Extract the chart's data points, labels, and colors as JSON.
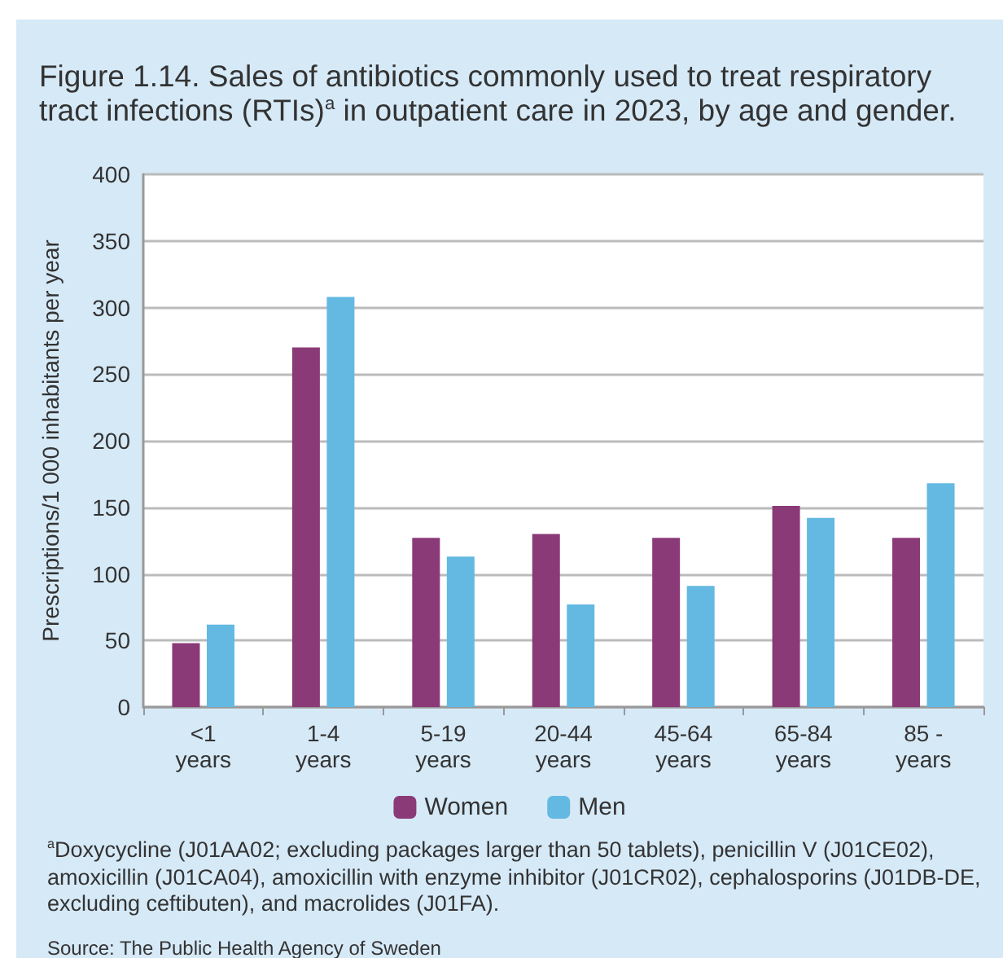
{
  "chart_data": {
    "type": "bar",
    "title": "Figure 1.14. Sales of antibiotics commonly used to treat respiratory tract infections (RTIs)$^{a}$ in outpatient care in 2023, by age and gender.",
    "ylabel": "Prescriptions/1 000 inhabitants per year",
    "categories": [
      "<1\nyears",
      "1-4\nyears",
      "5-19\nyears",
      "20-44\nyears",
      "45-64\nyears",
      "65-84\nyears",
      "85 -\nyears"
    ],
    "series": [
      {
        "name": "Women",
        "color": "#8b3a78",
        "values": [
          48,
          270,
          127,
          130,
          127,
          151,
          127
        ]
      },
      {
        "name": "Men",
        "color": "#63b9e2",
        "values": [
          62,
          308,
          113,
          77,
          91,
          142,
          168
        ]
      }
    ],
    "ylim": [
      0,
      400
    ],
    "yticks": [
      0,
      50,
      100,
      150,
      200,
      250,
      300,
      350,
      400
    ],
    "grid": "y",
    "legend": "bottom",
    "annotations": [
      "$^{a}$Doxycycline (J01AA02; excluding packages larger than 50 tablets), penicillin V (J01CE02), amoxicillin (J01CA04), amoxicillin with enzyme inhibitor (J01CR02), cephalosporins (J01DB-DE, excluding ceftibuten), and macrolides (J01FA).",
      "Source: The Public Health Agency of Sweden"
    ]
  }
}
